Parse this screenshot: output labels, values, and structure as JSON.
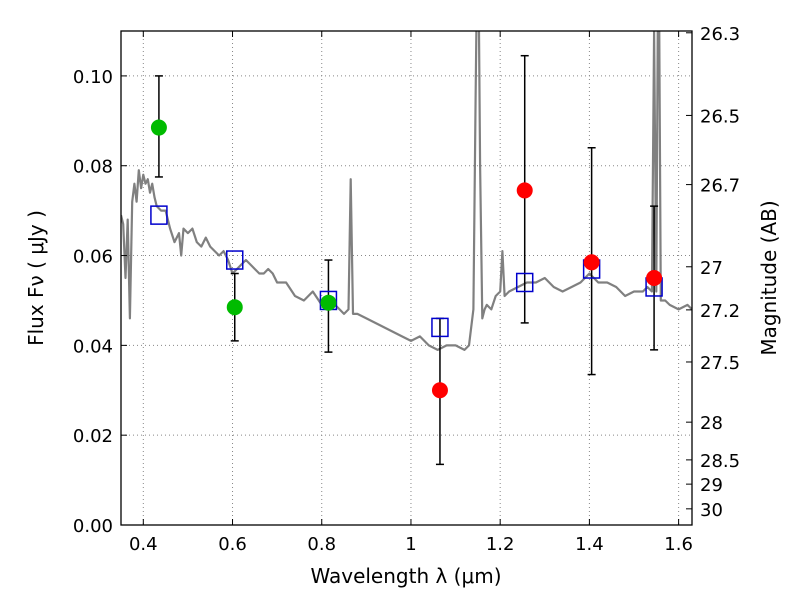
{
  "chart_data": {
    "type": "scatter",
    "xlabel": "Wavelength  λ (μm)",
    "ylabel": "Flux  Fν  ( μJy )",
    "y2label": "Magnitude (AB)",
    "xlim": [
      0.35,
      1.63
    ],
    "ylim": [
      0.0,
      0.11
    ],
    "grid": true,
    "x_ticks": [
      0.4,
      0.6,
      0.8,
      1.0,
      1.2,
      1.4,
      1.6
    ],
    "x_tick_labels": [
      "0.4",
      "0.6",
      "0.8",
      "1",
      "1.2",
      "1.4",
      "1.6"
    ],
    "y_ticks": [
      0.0,
      0.02,
      0.04,
      0.06,
      0.08,
      0.1
    ],
    "y_tick_labels": [
      "0.00",
      "0.02",
      "0.04",
      "0.06",
      "0.08",
      "0.10"
    ],
    "y2_ticks": [
      {
        "label": "26.3",
        "flux": 0.1096
      },
      {
        "label": "26.5",
        "flux": 0.0912
      },
      {
        "label": "26.7",
        "flux": 0.0758
      },
      {
        "label": "27",
        "flux": 0.0575
      },
      {
        "label": "27.2",
        "flux": 0.0479
      },
      {
        "label": "27.5",
        "flux": 0.0363
      },
      {
        "label": "28",
        "flux": 0.0229
      },
      {
        "label": "28.5",
        "flux": 0.0145
      },
      {
        "label": "29",
        "flux": 0.0091
      },
      {
        "label": "30",
        "flux": 0.0036
      }
    ],
    "colors": {
      "model": "#808080",
      "model_photometry": "#0000cc",
      "detections": "#00bb00",
      "non_detections": "#ff0000",
      "error_bars": "#000000",
      "grid": "#888888"
    },
    "model_spectrum": {
      "x": [
        0.35,
        0.355,
        0.36,
        0.365,
        0.37,
        0.375,
        0.38,
        0.385,
        0.39,
        0.395,
        0.4,
        0.405,
        0.41,
        0.415,
        0.42,
        0.425,
        0.43,
        0.44,
        0.45,
        0.46,
        0.47,
        0.48,
        0.485,
        0.49,
        0.5,
        0.51,
        0.52,
        0.53,
        0.54,
        0.55,
        0.56,
        0.57,
        0.58,
        0.59,
        0.6,
        0.61,
        0.62,
        0.63,
        0.64,
        0.65,
        0.66,
        0.67,
        0.68,
        0.69,
        0.7,
        0.72,
        0.74,
        0.76,
        0.78,
        0.8,
        0.82,
        0.84,
        0.85,
        0.86,
        0.865,
        0.87,
        0.875,
        0.88,
        0.9,
        0.92,
        0.94,
        0.96,
        0.98,
        1.0,
        1.02,
        1.04,
        1.06,
        1.08,
        1.1,
        1.12,
        1.13,
        1.14,
        1.145,
        1.15,
        1.155,
        1.16,
        1.165,
        1.17,
        1.18,
        1.19,
        1.2,
        1.205,
        1.21,
        1.22,
        1.24,
        1.26,
        1.28,
        1.3,
        1.32,
        1.34,
        1.36,
        1.38,
        1.4,
        1.42,
        1.44,
        1.46,
        1.48,
        1.5,
        1.52,
        1.53,
        1.54,
        1.545,
        1.55,
        1.555,
        1.56,
        1.57,
        1.58,
        1.6,
        1.62,
        1.63
      ],
      "y": [
        0.069,
        0.067,
        0.055,
        0.068,
        0.046,
        0.072,
        0.076,
        0.072,
        0.079,
        0.075,
        0.078,
        0.076,
        0.077,
        0.074,
        0.076,
        0.073,
        0.071,
        0.07,
        0.07,
        0.066,
        0.063,
        0.065,
        0.06,
        0.066,
        0.065,
        0.066,
        0.063,
        0.062,
        0.064,
        0.062,
        0.061,
        0.06,
        0.061,
        0.059,
        0.056,
        0.057,
        0.058,
        0.059,
        0.058,
        0.057,
        0.056,
        0.056,
        0.057,
        0.056,
        0.054,
        0.054,
        0.051,
        0.05,
        0.052,
        0.049,
        0.05,
        0.048,
        0.047,
        0.048,
        0.077,
        0.047,
        0.047,
        0.047,
        0.046,
        0.045,
        0.044,
        0.043,
        0.042,
        0.041,
        0.042,
        0.04,
        0.039,
        0.04,
        0.04,
        0.039,
        0.04,
        0.048,
        0.095,
        0.14,
        0.08,
        0.046,
        0.048,
        0.049,
        0.048,
        0.051,
        0.052,
        0.061,
        0.051,
        0.052,
        0.053,
        0.054,
        0.054,
        0.055,
        0.053,
        0.052,
        0.053,
        0.054,
        0.056,
        0.054,
        0.054,
        0.053,
        0.051,
        0.052,
        0.052,
        0.053,
        0.052,
        0.11,
        0.052,
        0.14,
        0.05,
        0.05,
        0.049,
        0.048,
        0.049,
        0.048
      ]
    },
    "series": [
      {
        "marker": "open-square",
        "color_key": "model_photometry",
        "points": [
          {
            "x": 0.435,
            "y": 0.069
          },
          {
            "x": 0.605,
            "y": 0.059
          },
          {
            "x": 0.815,
            "y": 0.05
          },
          {
            "x": 1.065,
            "y": 0.044
          },
          {
            "x": 1.255,
            "y": 0.054
          },
          {
            "x": 1.405,
            "y": 0.057
          },
          {
            "x": 1.545,
            "y": 0.053
          }
        ]
      },
      {
        "marker": "circle",
        "color_key": "detections",
        "points": [
          {
            "x": 0.435,
            "y": 0.0885,
            "ylo": 0.0775,
            "yhi": 0.1
          },
          {
            "x": 0.605,
            "y": 0.0485,
            "ylo": 0.041,
            "yhi": 0.056
          },
          {
            "x": 0.815,
            "y": 0.0495,
            "ylo": 0.0385,
            "yhi": 0.059
          }
        ]
      },
      {
        "marker": "circle",
        "color_key": "non_detections",
        "points": [
          {
            "x": 1.065,
            "y": 0.03,
            "ylo": 0.0135,
            "yhi": 0.046
          },
          {
            "x": 1.255,
            "y": 0.0745,
            "ylo": 0.045,
            "yhi": 0.1045
          },
          {
            "x": 1.405,
            "y": 0.0585,
            "ylo": 0.0335,
            "yhi": 0.084
          },
          {
            "x": 1.545,
            "y": 0.055,
            "ylo": 0.039,
            "yhi": 0.071
          }
        ]
      }
    ]
  }
}
